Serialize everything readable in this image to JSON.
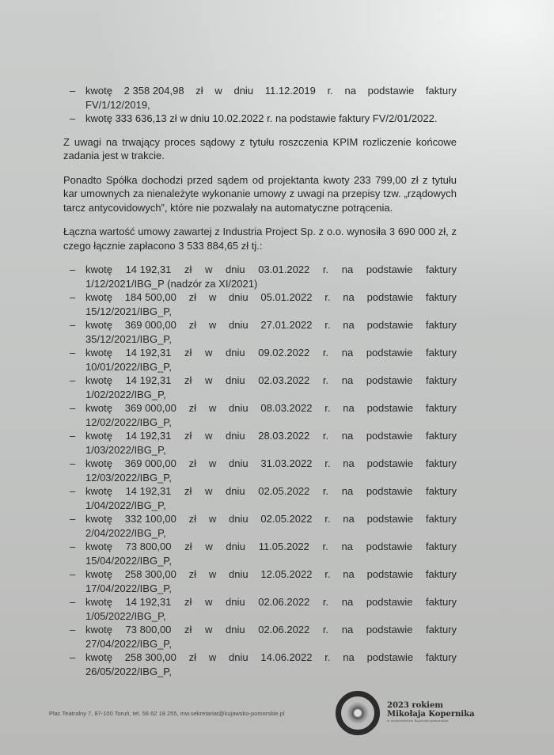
{
  "top_list": [
    {
      "line1": [
        "kwotę",
        "2 358 204,98",
        "zł",
        "w",
        "dniu",
        "11.12.2019",
        "r.",
        "na",
        "podstawie",
        "faktury"
      ],
      "line2": "FV/1/12/2019,"
    },
    {
      "single": "kwotę 333 636,13 zł w dniu 10.02.2022 r. na podstawie faktury FV/2/01/2022."
    }
  ],
  "paragraphs": [
    "Z uwagi na trwający proces sądowy z tytułu roszczenia KPIM rozliczenie końcowe zadania jest w trakcie.",
    "Ponadto Spółka dochodzi przed sądem od projektanta kwoty 233 799,00 zł z tytułu kar umownych za nienależyte wykonanie umowy z uwagi na przepisy tzw. „rządowych tarcz antycovidowych”, które nie pozwalały na automatyczne potrącenia.",
    "Łączna wartość umowy zawartej z Industria Project Sp. z o.o. wynosiła 3 690 000 zł, z czego łącznie zapłacono 3 533 884,65 zł tj.:"
  ],
  "dash": "–",
  "payments": [
    {
      "amount": "14 192,31",
      "date": "03.01.2022",
      "invoice": "1/12/2021/IBG_P (nadzór za XI/2021)"
    },
    {
      "amount": "184 500,00",
      "date": "05.01.2022",
      "invoice": "15/12/2021/IBG_P,"
    },
    {
      "amount": "369 000,00",
      "date": "27.01.2022",
      "invoice": "35/12/2021/IBG_P,"
    },
    {
      "amount": "14 192,31",
      "date": "09.02.2022",
      "invoice": "10/01/2022/IBG_P,"
    },
    {
      "amount": "14 192,31",
      "date": "02.03.2022",
      "invoice": "1/02/2022/IBG_P,"
    },
    {
      "amount": "369 000,00",
      "date": "08.03.2022",
      "invoice": "12/02/2022/IBG_P,"
    },
    {
      "amount": "14 192,31",
      "date": "28.03.2022",
      "invoice": "1/03/2022/IBG_P,"
    },
    {
      "amount": "369 000,00",
      "date": "31.03.2022",
      "invoice": "12/03/2022/IBG_P,"
    },
    {
      "amount": "14 192,31",
      "date": "02.05.2022",
      "invoice": "1/04/2022/IBG_P,"
    },
    {
      "amount": "332 100,00",
      "date": "02.05.2022",
      "invoice": "2/04/2022/IBG_P,"
    },
    {
      "amount": "73 800,00",
      "date": "11.05.2022",
      "invoice": "15/04/2022/IBG_P,"
    },
    {
      "amount": "258 300,00",
      "date": "12.05.2022",
      "invoice": "17/04/2022/IBG_P,"
    },
    {
      "amount": "14 192,31",
      "date": "02.06.2022",
      "invoice": "1/05/2022/IBG_P,"
    },
    {
      "amount": "73 800,00",
      "date": "02.06.2022",
      "invoice": "27/04/2022/IBG_P,"
    },
    {
      "amount": "258 300,00",
      "date": "14.06.2022",
      "invoice": "26/05/2022/IBG_P,"
    }
  ],
  "payment_words": {
    "kwote": "kwotę",
    "zl": "zł",
    "w": "w",
    "dniu": "dniu",
    "r": "r.",
    "na": "na",
    "podstawie": "podstawie",
    "faktury": "faktury"
  },
  "footer": {
    "address": "Plac Teatralny 7, 87-100 Toruń, tel. 56 62 18 255, mw.sekretariat@kujawsko-pomorskie.pl",
    "logo_line1": "2023 rokiem",
    "logo_line2": "Mikołaja Kopernika",
    "logo_line3": "w województwie kujawsko-pomorskim"
  }
}
